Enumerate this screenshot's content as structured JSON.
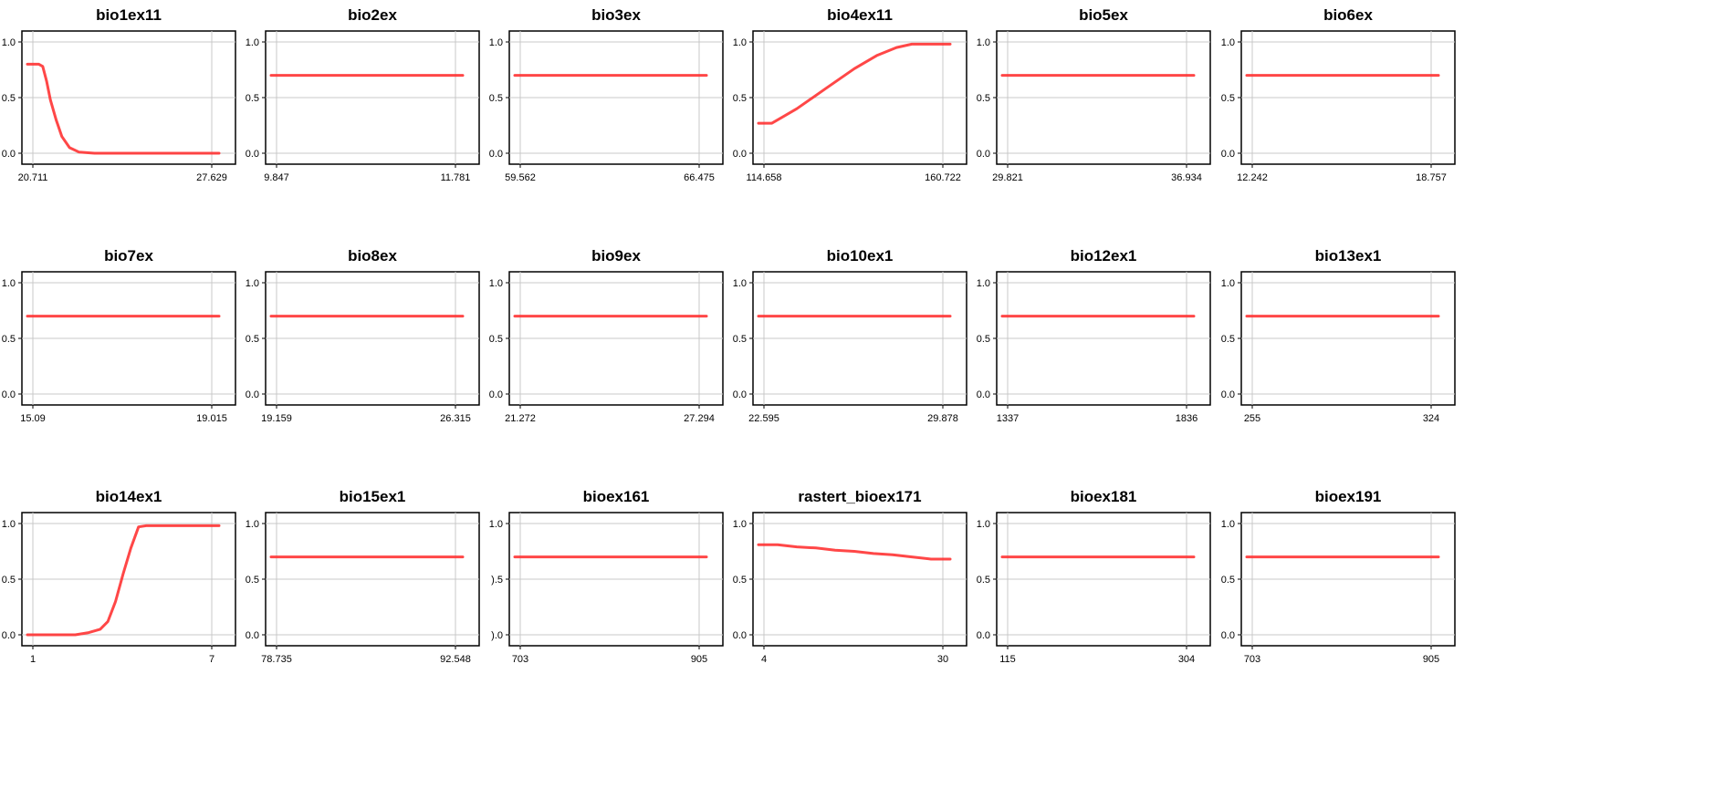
{
  "colors": {
    "curve": "#ff3333",
    "grid": "#c8c8c8",
    "frame": "#000000"
  },
  "chart_data": [
    {
      "type": "line",
      "title": "bio1ex11",
      "ylim": [
        0,
        1
      ],
      "yticks": [
        "0.0",
        "0.5",
        "1.0"
      ],
      "xticks": [
        "20.711",
        "27.629"
      ],
      "x": [
        0,
        0.06,
        0.08,
        0.1,
        0.12,
        0.15,
        0.18,
        0.22,
        0.27,
        0.35,
        0.45,
        1.0
      ],
      "y": [
        0.8,
        0.8,
        0.78,
        0.65,
        0.48,
        0.3,
        0.15,
        0.05,
        0.01,
        0.0,
        0.0,
        0.0
      ]
    },
    {
      "type": "line",
      "title": "bio2ex",
      "ylim": [
        0,
        1
      ],
      "yticks": [
        "0.0",
        "0.5",
        "1.0"
      ],
      "xticks": [
        "9.847",
        "11.781"
      ],
      "x": [
        0,
        1
      ],
      "y": [
        0.7,
        0.7
      ]
    },
    {
      "type": "line",
      "title": "bio3ex",
      "ylim": [
        0,
        1
      ],
      "yticks": [
        "0.0",
        "0.5",
        "1.0"
      ],
      "xticks": [
        "59.562",
        "66.475"
      ],
      "x": [
        0,
        1
      ],
      "y": [
        0.7,
        0.7
      ]
    },
    {
      "type": "line",
      "title": "bio4ex11",
      "ylim": [
        0,
        1
      ],
      "yticks": [
        "0.0",
        "0.5",
        "1.0"
      ],
      "xticks": [
        "114.658",
        "160.722"
      ],
      "x": [
        0,
        0.07,
        0.2,
        0.35,
        0.5,
        0.62,
        0.72,
        0.8,
        0.88,
        1.0
      ],
      "y": [
        0.27,
        0.27,
        0.4,
        0.58,
        0.76,
        0.88,
        0.95,
        0.98,
        0.98,
        0.98
      ]
    },
    {
      "type": "line",
      "title": "bio5ex",
      "ylim": [
        0,
        1
      ],
      "yticks": [
        "0.0",
        "0.5",
        "1.0"
      ],
      "xticks": [
        "29.821",
        "36.934"
      ],
      "x": [
        0,
        1
      ],
      "y": [
        0.7,
        0.7
      ]
    },
    {
      "type": "line",
      "title": "bio6ex",
      "ylim": [
        0,
        1
      ],
      "yticks": [
        "0.0",
        "0.5",
        "1.0"
      ],
      "xticks": [
        "12.242",
        "18.757"
      ],
      "x": [
        0,
        1
      ],
      "y": [
        0.7,
        0.7
      ]
    },
    {
      "type": "line",
      "title": "bio7ex",
      "ylim": [
        0,
        1
      ],
      "yticks": [
        "0.0",
        "0.5",
        "1.0"
      ],
      "xticks": [
        "15.09",
        "19.015"
      ],
      "x": [
        0,
        1
      ],
      "y": [
        0.7,
        0.7
      ]
    },
    {
      "type": "line",
      "title": "bio8ex",
      "ylim": [
        0,
        1
      ],
      "yticks": [
        "0.0",
        "0.5",
        "1.0"
      ],
      "xticks": [
        "19.159",
        "26.315"
      ],
      "x": [
        0,
        1
      ],
      "y": [
        0.7,
        0.7
      ]
    },
    {
      "type": "line",
      "title": "bio9ex",
      "ylim": [
        0,
        1
      ],
      "yticks": [
        "0.0",
        "0.5",
        "1.0"
      ],
      "xticks": [
        "21.272",
        "27.294"
      ],
      "x": [
        0,
        1
      ],
      "y": [
        0.7,
        0.7
      ]
    },
    {
      "type": "line",
      "title": "bio10ex1",
      "ylim": [
        0,
        1
      ],
      "yticks": [
        "0.0",
        "0.5",
        "1.0"
      ],
      "xticks": [
        "22.595",
        "29.878"
      ],
      "x": [
        0,
        1
      ],
      "y": [
        0.7,
        0.7
      ]
    },
    {
      "type": "line",
      "title": "bio12ex1",
      "ylim": [
        0,
        1
      ],
      "yticks": [
        "0.0",
        "0.5",
        "1.0"
      ],
      "xticks": [
        "1337",
        "1836"
      ],
      "x": [
        0,
        1
      ],
      "y": [
        0.7,
        0.7
      ]
    },
    {
      "type": "line",
      "title": "bio13ex1",
      "ylim": [
        0,
        1
      ],
      "yticks": [
        "0.0",
        "0.5",
        "1.0"
      ],
      "xticks": [
        "255",
        "324"
      ],
      "x": [
        0,
        1
      ],
      "y": [
        0.7,
        0.7
      ]
    },
    {
      "type": "line",
      "title": "bio14ex1",
      "ylim": [
        0,
        1
      ],
      "yticks": [
        "0.0",
        "0.5",
        "1.0"
      ],
      "xticks": [
        "1",
        "7"
      ],
      "x": [
        0,
        0.25,
        0.32,
        0.38,
        0.42,
        0.46,
        0.5,
        0.54,
        0.58,
        0.62,
        1.0
      ],
      "y": [
        0.0,
        0.0,
        0.02,
        0.05,
        0.12,
        0.3,
        0.55,
        0.78,
        0.97,
        0.98,
        0.98
      ]
    },
    {
      "type": "line",
      "title": "bio15ex1",
      "ylim": [
        0,
        1
      ],
      "yticks": [
        "0.0",
        "0.5",
        "1.0"
      ],
      "xticks": [
        "78.735",
        "92.548"
      ],
      "x": [
        0,
        1
      ],
      "y": [
        0.7,
        0.7
      ]
    },
    {
      "type": "line",
      "title": "bioex161",
      "ylim": [
        0,
        1
      ],
      "yticks": [
        ").0",
        ").5",
        "1.0"
      ],
      "xticks": [
        "703",
        "905"
      ],
      "x": [
        0,
        1
      ],
      "y": [
        0.7,
        0.7
      ]
    },
    {
      "type": "line",
      "title": "rastert_bioex171",
      "ylim": [
        0,
        1
      ],
      "yticks": [
        "0.0",
        "0.5",
        "1.0"
      ],
      "xticks": [
        "4",
        "30"
      ],
      "x": [
        0,
        0.1,
        0.2,
        0.3,
        0.4,
        0.5,
        0.6,
        0.7,
        0.8,
        0.9,
        1.0
      ],
      "y": [
        0.81,
        0.81,
        0.79,
        0.78,
        0.76,
        0.75,
        0.73,
        0.72,
        0.7,
        0.68,
        0.68
      ]
    },
    {
      "type": "line",
      "title": "bioex181",
      "ylim": [
        0,
        1
      ],
      "yticks": [
        "0.0",
        "0.5",
        "1.0"
      ],
      "xticks": [
        "115",
        "304"
      ],
      "x": [
        0,
        1
      ],
      "y": [
        0.7,
        0.7
      ]
    },
    {
      "type": "line",
      "title": "bioex191",
      "ylim": [
        0,
        1
      ],
      "yticks": [
        "0.0",
        "0.5",
        "1.0"
      ],
      "xticks": [
        "703",
        "905"
      ],
      "x": [
        0,
        1
      ],
      "y": [
        0.7,
        0.7
      ]
    }
  ]
}
